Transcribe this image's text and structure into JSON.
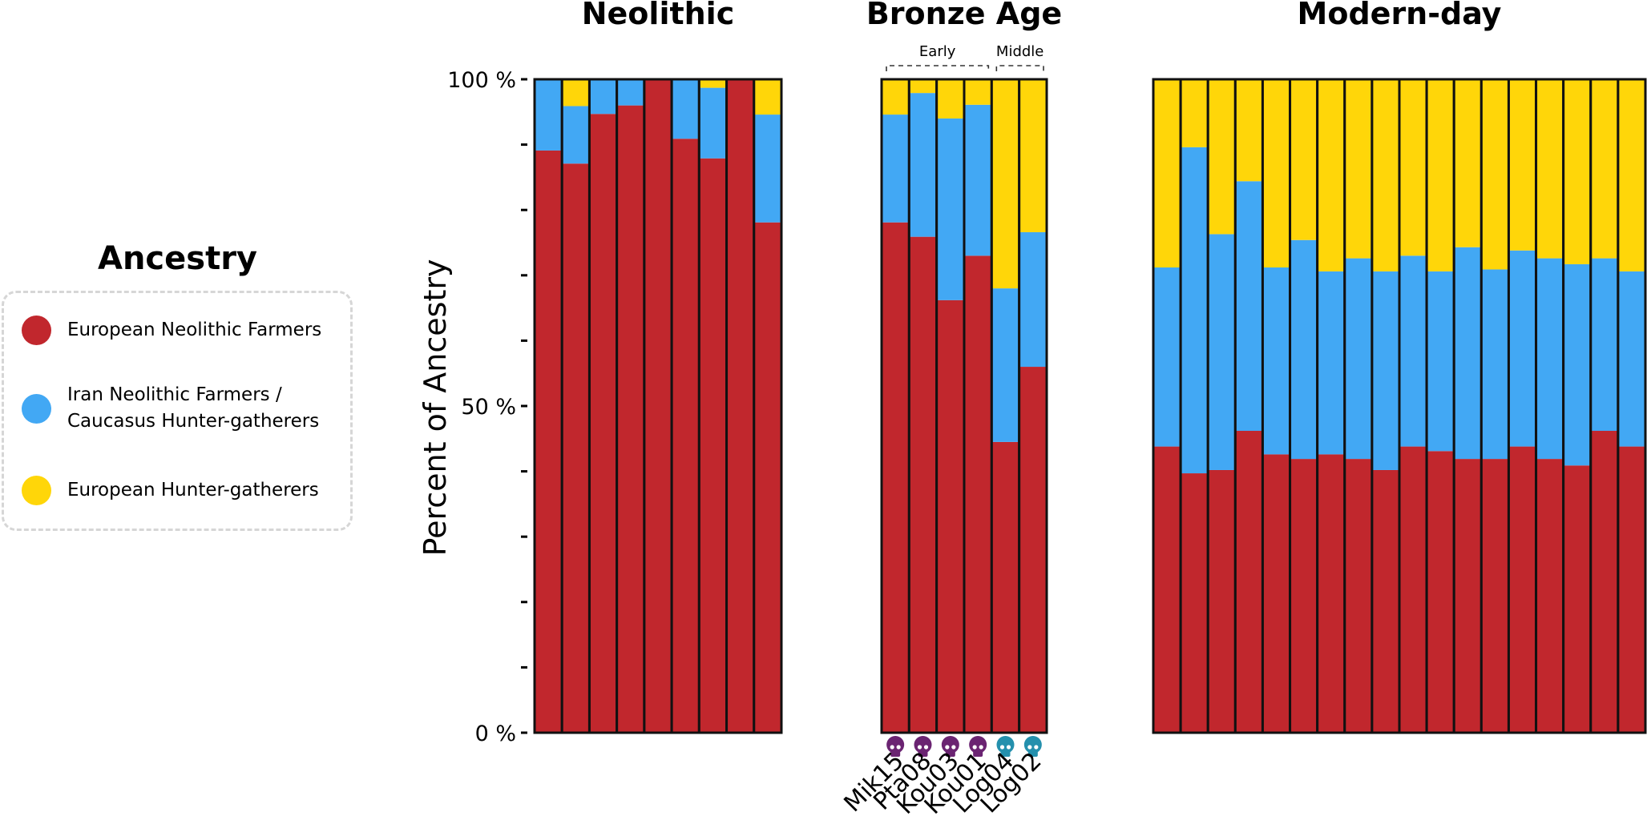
{
  "legend": {
    "title": "Ancestry",
    "items": [
      {
        "label": "European Neolithic Farmers",
        "color": "#c1272d"
      },
      {
        "label": "Iran Neolithic Farmers /\nCaucasus Hunter-gatherers",
        "color": "#42a8f4"
      },
      {
        "label": "European Hunter-gatherers",
        "color": "#ffd609"
      }
    ]
  },
  "chart_data": {
    "type": "bar",
    "stacked": true,
    "ylabel": "Percent of Ancestry",
    "ylim": [
      0,
      100
    ],
    "yticks": [
      0,
      10,
      20,
      30,
      40,
      50,
      60,
      70,
      80,
      90,
      100
    ],
    "ytick_labels": {
      "0": "0 %",
      "50": "50 %",
      "100": "100 %"
    },
    "series_names": [
      "European Neolithic Farmers",
      "Iran Neolithic Farmers / Caucasus Hunter-gatherers",
      "European Hunter-gatherers"
    ],
    "series_colors": [
      "#c1272d",
      "#42a8f4",
      "#ffd609"
    ],
    "panels": [
      {
        "title": "Neolithic",
        "bars": [
          {
            "values": [
              89.1,
              10.9,
              0.0
            ]
          },
          {
            "values": [
              87.1,
              8.8,
              4.1
            ]
          },
          {
            "values": [
              94.7,
              5.3,
              0.0
            ]
          },
          {
            "values": [
              96.0,
              4.0,
              0.0
            ]
          },
          {
            "values": [
              100.0,
              0.0,
              0.0
            ]
          },
          {
            "values": [
              90.9,
              9.1,
              0.0
            ]
          },
          {
            "values": [
              87.9,
              10.8,
              1.3
            ]
          },
          {
            "values": [
              100.0,
              0.0,
              0.0
            ]
          },
          {
            "values": [
              78.1,
              16.5,
              5.4
            ]
          }
        ]
      },
      {
        "title": "Bronze Age",
        "groups": [
          {
            "label": "Early",
            "from": 0,
            "to": 3
          },
          {
            "label": "Middle",
            "from": 4,
            "to": 5
          }
        ],
        "bars": [
          {
            "label": "Mik15",
            "values": [
              78.1,
              16.5,
              5.4
            ],
            "icon": "skull-icon",
            "icon_color": "#6b2472"
          },
          {
            "label": "Pta08",
            "values": [
              75.9,
              22.0,
              2.1
            ],
            "icon": "skull-icon",
            "icon_color": "#6b2472"
          },
          {
            "label": "Kou03",
            "values": [
              66.2,
              27.8,
              6.0
            ],
            "icon": "skull-icon",
            "icon_color": "#6b2472"
          },
          {
            "label": "Kou01",
            "values": [
              73.0,
              23.1,
              3.9
            ],
            "icon": "skull-icon",
            "icon_color": "#6b2472"
          },
          {
            "label": "Log04",
            "values": [
              44.5,
              23.5,
              32.0
            ],
            "icon": "skull-icon",
            "icon_color": "#2490ad"
          },
          {
            "label": "Log02",
            "values": [
              56.0,
              20.6,
              23.4
            ],
            "icon": "skull-icon",
            "icon_color": "#2490ad"
          }
        ]
      },
      {
        "title": "Modern-day",
        "bars": [
          {
            "values": [
              43.8,
              27.4,
              28.8
            ]
          },
          {
            "values": [
              39.7,
              49.9,
              10.4
            ]
          },
          {
            "values": [
              40.2,
              36.1,
              23.7
            ]
          },
          {
            "values": [
              46.2,
              38.2,
              15.6
            ]
          },
          {
            "values": [
              42.6,
              28.6,
              28.8
            ]
          },
          {
            "values": [
              41.9,
              33.5,
              24.6
            ]
          },
          {
            "values": [
              42.6,
              28.0,
              29.4
            ]
          },
          {
            "values": [
              41.9,
              30.7,
              27.4
            ]
          },
          {
            "values": [
              40.2,
              30.4,
              29.4
            ]
          },
          {
            "values": [
              43.8,
              29.2,
              27.0
            ]
          },
          {
            "values": [
              43.1,
              27.5,
              29.4
            ]
          },
          {
            "values": [
              41.9,
              32.4,
              25.7
            ]
          },
          {
            "values": [
              41.9,
              29.0,
              29.1
            ]
          },
          {
            "values": [
              43.8,
              30.0,
              26.2
            ]
          },
          {
            "values": [
              41.9,
              30.7,
              27.4
            ]
          },
          {
            "values": [
              40.9,
              30.8,
              28.3
            ]
          },
          {
            "values": [
              46.2,
              26.4,
              27.4
            ]
          },
          {
            "values": [
              43.8,
              26.8,
              29.4
            ]
          }
        ]
      }
    ]
  }
}
